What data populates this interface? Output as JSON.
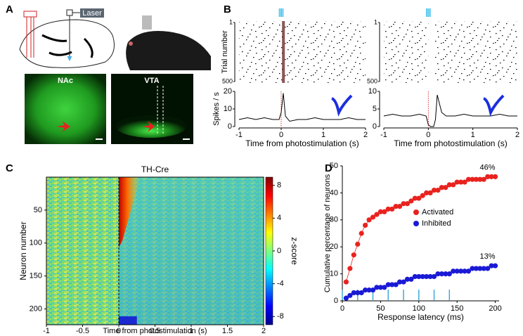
{
  "panel_labels": [
    "A",
    "B",
    "C",
    "D"
  ],
  "panel_a": {
    "laser": "Laser",
    "images": [
      "NAc",
      "VTA"
    ]
  },
  "chart_data": [
    {
      "type": "line",
      "raster_ylabel": "Trial number",
      "raster_yticks": [
        1,
        500
      ],
      "raster_ylim": [
        1,
        500
      ],
      "ylabel": "Spikes / s",
      "xlabel": "Time from photostimulation (s)",
      "color": "#000000",
      "x": [
        -1,
        -0.8,
        -0.6,
        -0.4,
        -0.2,
        -0.05,
        0,
        0.05,
        0.1,
        0.2,
        0.4,
        0.6,
        0.8,
        1,
        1.2,
        1.4,
        1.6,
        1.8,
        2
      ],
      "values": [
        4,
        5,
        4,
        5,
        4,
        4,
        8,
        19,
        6,
        3,
        4,
        4,
        5,
        4,
        4,
        4,
        5,
        4,
        4
      ],
      "xlim": [
        -1,
        2
      ],
      "xticks": [
        -1,
        0,
        1,
        2
      ],
      "ylim": [
        0,
        20
      ],
      "yticks": [
        0,
        10,
        20
      ]
    },
    {
      "type": "line",
      "raster_yticks": [
        1,
        500
      ],
      "raster_ylim": [
        1,
        500
      ],
      "xlabel": "Time from photostimulation (s)",
      "color": "#000000",
      "x": [
        -1,
        -0.8,
        -0.6,
        -0.4,
        -0.2,
        -0.05,
        0,
        0.05,
        0.12,
        0.16,
        0.2,
        0.3,
        0.4,
        0.6,
        0.8,
        1,
        1.2,
        1.4,
        1.6,
        1.8,
        2
      ],
      "values": [
        3,
        3.5,
        3,
        3,
        3.5,
        3,
        0.5,
        0,
        0,
        2,
        9,
        4,
        3,
        3,
        3.5,
        3,
        3,
        3,
        3.5,
        3,
        3
      ],
      "xlim": [
        -1,
        2
      ],
      "xticks": [
        -1,
        0,
        1,
        2
      ],
      "ylim": [
        0,
        10
      ],
      "yticks": [
        0,
        5,
        10
      ]
    },
    {
      "type": "heatmap",
      "title": "TH-Cre",
      "ylabel": "Neuron number",
      "xlabel": "Time from photostimulation (s)",
      "colorbar_label": "z-score",
      "xlim": [
        -1,
        2
      ],
      "xticks": [
        -1,
        -0.5,
        0,
        0.5,
        1,
        1.5,
        2
      ],
      "ylim": [
        0,
        224
      ],
      "yticks": [
        50,
        100,
        150,
        200
      ],
      "clim": [
        -9,
        9
      ],
      "cticks": [
        -8,
        -4,
        0,
        4,
        8
      ]
    },
    {
      "type": "scatter",
      "ylabel": "Cumulative percentage of neurons",
      "xlabel": "Response latency (ms)",
      "xlim": [
        0,
        205
      ],
      "xticks": [
        0,
        50,
        100,
        150,
        200
      ],
      "ylim": [
        0,
        50
      ],
      "yticks": [
        0,
        10,
        20,
        30,
        40,
        50
      ],
      "stim_pulses": [
        0,
        20,
        40,
        60,
        80,
        100,
        120,
        140
      ],
      "stim_color": "#3fa9d8",
      "x": [
        5,
        10,
        15,
        20,
        25,
        30,
        35,
        40,
        45,
        50,
        55,
        60,
        65,
        70,
        75,
        80,
        85,
        90,
        95,
        100,
        105,
        110,
        115,
        120,
        125,
        130,
        135,
        140,
        145,
        150,
        155,
        160,
        165,
        170,
        175,
        180,
        185,
        190,
        195,
        200
      ],
      "series": [
        {
          "name": "Activated",
          "color": "#e8231f",
          "values": [
            7,
            12,
            17,
            21,
            25,
            28,
            30,
            31,
            32,
            33,
            33,
            34,
            34,
            35,
            35,
            36,
            36,
            37,
            38,
            38,
            39,
            40,
            40,
            41,
            41,
            42,
            42,
            43,
            43,
            44,
            44,
            44,
            45,
            45,
            45,
            45,
            45,
            46,
            46,
            46
          ]
        },
        {
          "name": "Inhibited",
          "color": "#1a1ad6",
          "values": [
            1,
            2,
            3,
            3,
            3,
            4,
            4,
            4,
            5,
            5,
            5,
            6,
            6,
            6,
            7,
            7,
            8,
            8,
            9,
            9,
            9,
            9,
            9,
            9,
            10,
            10,
            10,
            10,
            11,
            11,
            11,
            11,
            11,
            12,
            12,
            12,
            12,
            12,
            13,
            13
          ]
        }
      ],
      "annotations": [
        "46%",
        "13%"
      ]
    }
  ]
}
